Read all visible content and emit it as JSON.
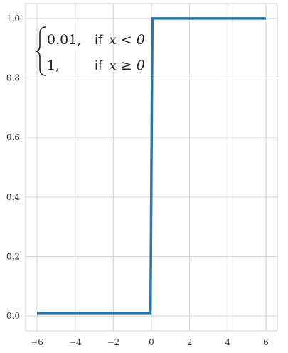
{
  "chart_data": {
    "type": "line",
    "title": "",
    "xlabel": "",
    "ylabel": "",
    "xlim": [
      -6.6,
      6.6
    ],
    "ylim": [
      -0.05,
      1.05
    ],
    "xticks": [
      -6,
      -4,
      -2,
      0,
      2,
      4,
      6
    ],
    "xtick_labels": [
      "−6",
      "−4",
      "−2",
      "0",
      "2",
      "4",
      "6"
    ],
    "yticks": [
      0.0,
      0.2,
      0.4,
      0.6,
      0.8,
      1.0
    ],
    "ytick_labels": [
      "0.0",
      "0.2",
      "0.4",
      "0.6",
      "0.8",
      "1.0"
    ],
    "grid": true,
    "series": [
      {
        "color": "#2876a8",
        "x": [
          -6,
          -0.05,
          0.05,
          6
        ],
        "y": [
          0.01,
          0.01,
          1.0,
          1.0
        ]
      }
    ],
    "annotation": {
      "case1_value": "0.01,",
      "case1_cond_word": "if",
      "case1_cond_math": "x < 0",
      "case2_value": "1,",
      "case2_cond_word": "if",
      "case2_cond_math": "x ≥ 0",
      "position": "top-left"
    }
  }
}
